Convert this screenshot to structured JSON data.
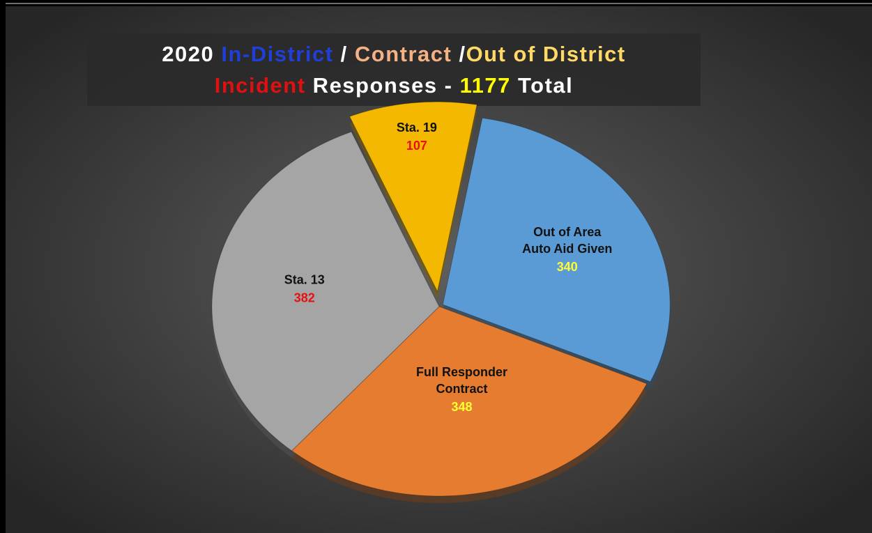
{
  "chart_data": {
    "type": "pie",
    "title_lines": [
      [
        {
          "text": "2020 ",
          "color": "#ffffff"
        },
        {
          "text": "In-District",
          "color": "#1f3fd8"
        },
        {
          "text": " / ",
          "color": "#ffffff"
        },
        {
          "text": "Contract",
          "color": "#f4b183"
        },
        {
          "text": " /",
          "color": "#ffffff"
        },
        {
          "text": "Out of District",
          "color": "#ffd966"
        }
      ],
      [
        {
          "text": "Incident",
          "color": "#e01010"
        },
        {
          "text": " Responses - ",
          "color": "#ffffff"
        },
        {
          "text": "1177",
          "color": "#ffff00"
        },
        {
          "text": " Total",
          "color": "#ffffff"
        }
      ]
    ],
    "categories": [
      [
        "Out of Area",
        "Auto Aid Given"
      ],
      [
        "Full Responder",
        "Contract"
      ],
      [
        "Sta. 13"
      ],
      [
        "Sta. 19"
      ]
    ],
    "values": [
      340,
      348,
      382,
      107
    ],
    "colors": [
      "#5b9bd5",
      "#e57c30",
      "#a5a5a5",
      "#f5b800"
    ],
    "value_colors": [
      "#ffff33",
      "#ffff33",
      "#e81010",
      "#e81010"
    ]
  }
}
